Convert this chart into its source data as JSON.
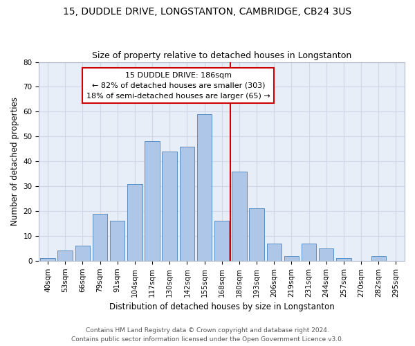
{
  "title1": "15, DUDDLE DRIVE, LONGSTANTON, CAMBRIDGE, CB24 3US",
  "title2": "Size of property relative to detached houses in Longstanton",
  "xlabel": "Distribution of detached houses by size in Longstanton",
  "ylabel": "Number of detached properties",
  "categories": [
    "40sqm",
    "53sqm",
    "66sqm",
    "79sqm",
    "91sqm",
    "104sqm",
    "117sqm",
    "130sqm",
    "142sqm",
    "155sqm",
    "168sqm",
    "180sqm",
    "193sqm",
    "206sqm",
    "219sqm",
    "231sqm",
    "244sqm",
    "257sqm",
    "270sqm",
    "282sqm",
    "295sqm"
  ],
  "values": [
    1,
    4,
    6,
    19,
    16,
    31,
    48,
    44,
    46,
    59,
    16,
    36,
    21,
    7,
    2,
    7,
    5,
    1,
    0,
    2,
    0
  ],
  "bar_color": "#aec6e8",
  "bar_edge_color": "#5a8fc2",
  "property_line_x": 10.5,
  "annotation_text": "15 DUDDLE DRIVE: 186sqm\n← 82% of detached houses are smaller (303)\n18% of semi-detached houses are larger (65) →",
  "annotation_box_color": "#ffffff",
  "annotation_edge_color": "#cc0000",
  "vline_color": "#cc0000",
  "ylim": [
    0,
    80
  ],
  "yticks": [
    0,
    10,
    20,
    30,
    40,
    50,
    60,
    70,
    80
  ],
  "grid_color": "#d0d8e8",
  "bg_color": "#e8eef8",
  "footer1": "Contains HM Land Registry data © Crown copyright and database right 2024.",
  "footer2": "Contains public sector information licensed under the Open Government Licence v3.0.",
  "title_fontsize": 10,
  "subtitle_fontsize": 9,
  "axis_label_fontsize": 8.5,
  "tick_fontsize": 7.5,
  "annotation_fontsize": 8,
  "footer_fontsize": 6.5
}
